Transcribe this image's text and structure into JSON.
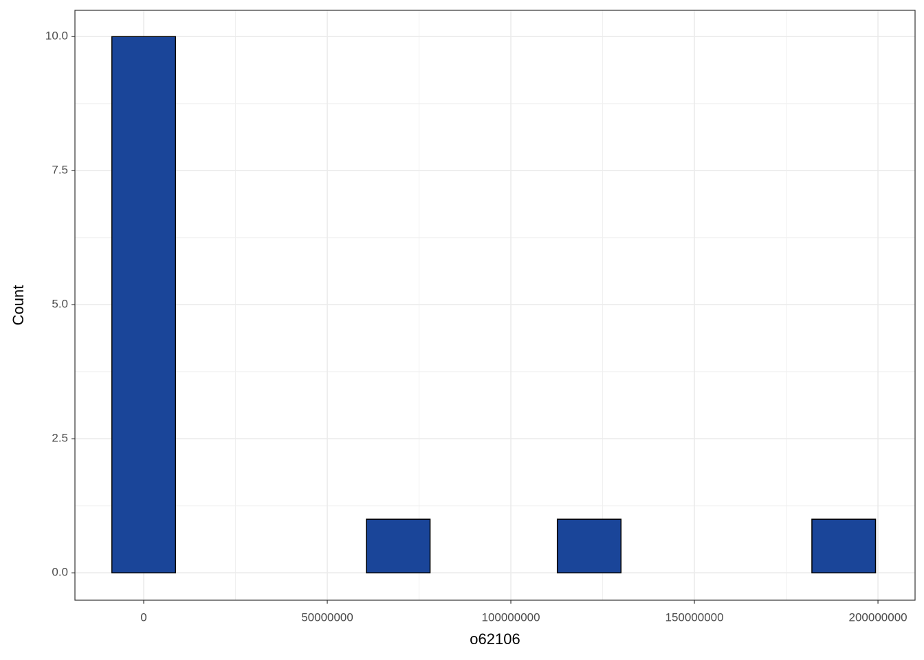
{
  "chart_data": {
    "type": "histogram",
    "x_label": "o62106",
    "y_label": "Count",
    "bins": [
      -8666667,
      8666667,
      26000000,
      43333333,
      60666667,
      78000000,
      95333333,
      112666667,
      130000000,
      147333333,
      164666667,
      182000000,
      199333333
    ],
    "values": [
      10,
      0,
      0,
      0,
      1,
      0,
      0,
      1,
      0,
      0,
      0,
      1
    ],
    "color": "#1a4599",
    "xlim": [
      -18730000,
      210100000
    ],
    "xticks": [
      0,
      50000000,
      100000000,
      150000000,
      200000000
    ],
    "ylim": [
      -0.51,
      10.49
    ],
    "yticks": [
      {
        "value": 0,
        "label": "0.0"
      },
      2.5,
      {
        "value": 5,
        "label": "5.0"
      },
      7.5,
      {
        "value": 10,
        "label": "10.0"
      }
    ],
    "grid": true
  }
}
